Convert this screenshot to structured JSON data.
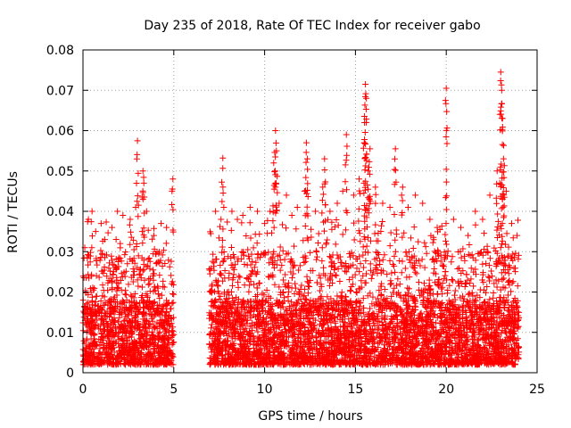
{
  "chart_data": {
    "type": "scatter",
    "title": "Day 235 of 2018, Rate Of TEC Index for receiver gabo",
    "xlabel": "GPS time / hours",
    "ylabel": "ROTI / TECUs",
    "xlim": [
      0,
      25
    ],
    "ylim": [
      0,
      0.08
    ],
    "x_ticks": [
      "0",
      "5",
      "10",
      "15",
      "20",
      "25"
    ],
    "y_ticks": [
      "0",
      "0.01",
      "0.02",
      "0.03",
      "0.04",
      "0.05",
      "0.06",
      "0.07",
      "0.08"
    ],
    "grid": true,
    "legend": "none",
    "marker": "plus",
    "color": "#ff0000",
    "data_gaps_hours": [
      [
        5.0,
        6.95
      ]
    ],
    "series": [
      {
        "points": [
          [
            0.1,
            0.031
          ],
          [
            0.3,
            0.038
          ],
          [
            0.5,
            0.04
          ],
          [
            0.7,
            0.035
          ],
          [
            1.0,
            0.037
          ],
          [
            1.2,
            0.033
          ],
          [
            1.6,
            0.036
          ],
          [
            1.9,
            0.04
          ],
          [
            2.2,
            0.039
          ],
          [
            2.6,
            0.038
          ],
          [
            2.9,
            0.041
          ],
          [
            3.0,
            0.0575
          ],
          [
            3.3,
            0.05
          ],
          [
            3.35,
            0.047
          ],
          [
            3.5,
            0.04
          ],
          [
            3.9,
            0.034
          ],
          [
            4.3,
            0.037
          ],
          [
            4.6,
            0.036
          ],
          [
            4.9,
            0.045
          ],
          [
            4.95,
            0.048
          ],
          [
            7.3,
            0.04
          ],
          [
            7.6,
            0.038
          ],
          [
            7.7,
            0.0532
          ],
          [
            8.2,
            0.04
          ],
          [
            8.5,
            0.038
          ],
          [
            8.8,
            0.039
          ],
          [
            9.2,
            0.041
          ],
          [
            9.6,
            0.04
          ],
          [
            10.0,
            0.037
          ],
          [
            10.3,
            0.04
          ],
          [
            10.5,
            0.052
          ],
          [
            10.6,
            0.06
          ],
          [
            10.65,
            0.055
          ],
          [
            10.8,
            0.042
          ],
          [
            11.2,
            0.044
          ],
          [
            11.5,
            0.039
          ],
          [
            11.8,
            0.041
          ],
          [
            12.2,
            0.045
          ],
          [
            12.3,
            0.057
          ],
          [
            12.35,
            0.053
          ],
          [
            12.8,
            0.04
          ],
          [
            13.2,
            0.046
          ],
          [
            13.3,
            0.053
          ],
          [
            13.6,
            0.04
          ],
          [
            14.0,
            0.042
          ],
          [
            14.3,
            0.045
          ],
          [
            14.5,
            0.059
          ],
          [
            14.9,
            0.044
          ],
          [
            15.2,
            0.048
          ],
          [
            15.5,
            0.062
          ],
          [
            15.55,
            0.0715
          ],
          [
            15.6,
            0.068
          ],
          [
            15.7,
            0.05
          ],
          [
            15.8,
            0.0555
          ],
          [
            16.1,
            0.046
          ],
          [
            16.5,
            0.042
          ],
          [
            16.9,
            0.041
          ],
          [
            17.2,
            0.0555
          ],
          [
            17.6,
            0.046
          ],
          [
            17.9,
            0.041
          ],
          [
            18.3,
            0.044
          ],
          [
            18.7,
            0.042
          ],
          [
            19.1,
            0.038
          ],
          [
            19.5,
            0.036
          ],
          [
            20.0,
            0.0705
          ],
          [
            20.4,
            0.038
          ],
          [
            20.8,
            0.036
          ],
          [
            21.2,
            0.034
          ],
          [
            21.6,
            0.04
          ],
          [
            22.0,
            0.038
          ],
          [
            22.4,
            0.044
          ],
          [
            22.8,
            0.05
          ],
          [
            23.0,
            0.0745
          ],
          [
            23.05,
            0.07
          ],
          [
            23.1,
            0.063
          ],
          [
            23.15,
            0.053
          ],
          [
            23.3,
            0.045
          ],
          [
            23.6,
            0.037
          ],
          [
            23.9,
            0.034
          ]
        ],
        "background_band": {
          "segments": [
            [
              0,
              5.0
            ],
            [
              6.95,
              24.0
            ]
          ],
          "y_min": 0.002,
          "y_typical": 0.012,
          "y_max": 0.03
        }
      }
    ]
  }
}
